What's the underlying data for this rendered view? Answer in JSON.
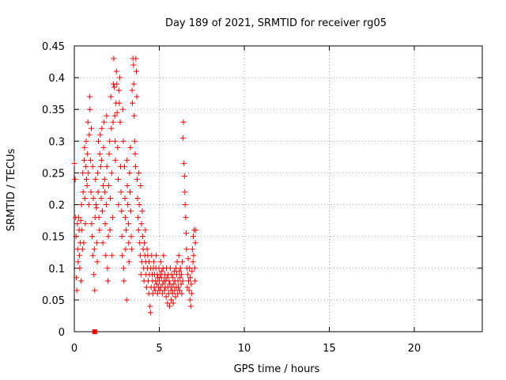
{
  "chart_data": {
    "type": "scatter",
    "title": "Day 189 of 2021, SRMTID for receiver rg05",
    "xlabel": "GPS time / hours",
    "ylabel": "SRMTID / TECUs",
    "xlim": [
      0,
      24
    ],
    "ylim": [
      0,
      0.45
    ],
    "x_ticks": [
      "0",
      "5",
      "10",
      "15",
      "20"
    ],
    "x_tick_values": [
      0,
      5,
      10,
      15,
      20
    ],
    "y_ticks": [
      "0",
      "0.05",
      "0.1",
      "0.15",
      "0.2",
      "0.25",
      "0.3",
      "0.35",
      "0.4",
      "0.45"
    ],
    "y_tick_values": [
      0,
      0.05,
      0.1,
      0.15,
      0.2,
      0.25,
      0.3,
      0.35,
      0.4,
      0.45
    ],
    "grid": true,
    "marker": "+",
    "color": "#ff0000",
    "series": [
      {
        "points": [
          [
            0.0,
            0.265
          ],
          [
            0.05,
            0.24
          ],
          [
            0.08,
            0.18
          ],
          [
            0.1,
            0.15
          ],
          [
            0.12,
            0.085
          ],
          [
            0.15,
            0.065
          ],
          [
            0.18,
            0.17
          ],
          [
            0.2,
            0.13
          ],
          [
            0.22,
            0.11
          ],
          [
            0.25,
            0.18
          ],
          [
            0.28,
            0.16
          ],
          [
            0.3,
            0.12
          ],
          [
            0.32,
            0.1
          ],
          [
            0.35,
            0.14
          ],
          [
            0.38,
            0.175
          ],
          [
            0.4,
            0.08
          ],
          [
            0.42,
            0.2
          ],
          [
            0.45,
            0.16
          ],
          [
            0.48,
            0.13
          ],
          [
            0.5,
            0.25
          ],
          [
            0.52,
            0.22
          ],
          [
            0.55,
            0.14
          ],
          [
            0.58,
            0.27
          ],
          [
            0.6,
            0.29
          ],
          [
            0.62,
            0.21
          ],
          [
            0.65,
            0.17
          ],
          [
            0.68,
            0.26
          ],
          [
            0.7,
            0.3
          ],
          [
            0.72,
            0.24
          ],
          [
            0.75,
            0.23
          ],
          [
            0.78,
            0.28
          ],
          [
            0.8,
            0.33
          ],
          [
            0.82,
            0.25
          ],
          [
            0.85,
            0.2
          ],
          [
            0.88,
            0.31
          ],
          [
            0.9,
            0.37
          ],
          [
            0.92,
            0.35
          ],
          [
            0.95,
            0.27
          ],
          [
            0.98,
            0.22
          ],
          [
            1.0,
            0.32
          ],
          [
            1.02,
            0.17
          ],
          [
            1.05,
            0.15
          ],
          [
            1.08,
            0.26
          ],
          [
            1.1,
            0.12
          ],
          [
            1.12,
            0.21
          ],
          [
            1.15,
            0.09
          ],
          [
            1.18,
            0.13
          ],
          [
            1.2,
            0.065
          ],
          [
            1.22,
            0.18
          ],
          [
            1.25,
            0.24
          ],
          [
            1.28,
            0.2
          ],
          [
            1.3,
            0.195
          ],
          [
            1.32,
            0.14
          ],
          [
            1.35,
            0.11
          ],
          [
            1.38,
            0.25
          ],
          [
            1.4,
            0.22
          ],
          [
            1.42,
            0.3
          ],
          [
            1.45,
            0.18
          ],
          [
            1.48,
            0.16
          ],
          [
            1.5,
            0.28
          ],
          [
            1.52,
            0.31
          ],
          [
            1.55,
            0.26
          ],
          [
            1.58,
            0.21
          ],
          [
            1.6,
            0.27
          ],
          [
            1.62,
            0.32
          ],
          [
            1.65,
            0.19
          ],
          [
            1.68,
            0.14
          ],
          [
            1.7,
            0.23
          ],
          [
            1.72,
            0.29
          ],
          [
            1.75,
            0.33
          ],
          [
            1.78,
            0.24
          ],
          [
            1.8,
            0.22
          ],
          [
            1.82,
            0.17
          ],
          [
            1.85,
            0.12
          ],
          [
            1.88,
            0.2
          ],
          [
            1.9,
            0.34
          ],
          [
            1.92,
            0.26
          ],
          [
            1.95,
            0.1
          ],
          [
            1.98,
            0.08
          ],
          [
            2.0,
            0.15
          ],
          [
            2.02,
            0.23
          ],
          [
            2.05,
            0.28
          ],
          [
            2.08,
            0.3
          ],
          [
            2.1,
            0.16
          ],
          [
            2.12,
            0.21
          ],
          [
            2.15,
            0.37
          ],
          [
            2.18,
            0.32
          ],
          [
            2.2,
            0.25
          ],
          [
            2.22,
            0.12
          ],
          [
            2.25,
            0.18
          ],
          [
            2.28,
            0.33
          ],
          [
            2.3,
            0.39
          ],
          [
            2.32,
            0.43
          ],
          [
            2.35,
            0.385
          ],
          [
            2.38,
            0.34
          ],
          [
            2.4,
            0.3
          ],
          [
            2.42,
            0.27
          ],
          [
            2.45,
            0.36
          ],
          [
            2.48,
            0.41
          ],
          [
            2.5,
            0.39
          ],
          [
            2.52,
            0.345
          ],
          [
            2.55,
            0.29
          ],
          [
            2.58,
            0.24
          ],
          [
            2.6,
            0.2
          ],
          [
            2.62,
            0.38
          ],
          [
            2.65,
            0.36
          ],
          [
            2.68,
            0.4
          ],
          [
            2.7,
            0.33
          ],
          [
            2.72,
            0.26
          ],
          [
            2.75,
            0.22
          ],
          [
            2.78,
            0.19
          ],
          [
            2.8,
            0.15
          ],
          [
            2.82,
            0.12
          ],
          [
            2.85,
            0.35
          ],
          [
            2.88,
            0.3
          ],
          [
            2.9,
            0.1
          ],
          [
            2.92,
            0.08
          ],
          [
            2.95,
            0.26
          ],
          [
            2.98,
            0.21
          ],
          [
            3.0,
            0.18
          ],
          [
            3.02,
            0.13
          ],
          [
            3.05,
            0.16
          ],
          [
            3.08,
            0.05
          ],
          [
            3.1,
            0.27
          ],
          [
            3.12,
            0.23
          ],
          [
            3.15,
            0.2
          ],
          [
            3.18,
            0.17
          ],
          [
            3.2,
            0.14
          ],
          [
            3.22,
            0.11
          ],
          [
            3.25,
            0.25
          ],
          [
            3.28,
            0.22
          ],
          [
            3.3,
            0.29
          ],
          [
            3.32,
            0.19
          ],
          [
            3.35,
            0.15
          ],
          [
            3.38,
            0.13
          ],
          [
            3.4,
            0.38
          ],
          [
            3.42,
            0.36
          ],
          [
            3.45,
            0.43
          ],
          [
            3.48,
            0.42
          ],
          [
            3.5,
            0.39
          ],
          [
            3.52,
            0.34
          ],
          [
            3.55,
            0.3
          ],
          [
            3.58,
            0.28
          ],
          [
            3.6,
            0.26
          ],
          [
            3.62,
            0.43
          ],
          [
            3.65,
            0.41
          ],
          [
            3.68,
            0.37
          ],
          [
            3.7,
            0.24
          ],
          [
            3.72,
            0.21
          ],
          [
            3.75,
            0.18
          ],
          [
            3.78,
            0.16
          ],
          [
            3.8,
            0.25
          ],
          [
            3.82,
            0.2
          ],
          [
            3.85,
            0.14
          ],
          [
            3.88,
            0.12
          ],
          [
            3.9,
            0.23
          ],
          [
            3.92,
            0.09
          ],
          [
            3.95,
            0.17
          ],
          [
            3.98,
            0.11
          ],
          [
            4.0,
            0.19
          ],
          [
            4.02,
            0.15
          ],
          [
            4.05,
            0.13
          ],
          [
            4.08,
            0.1
          ],
          [
            4.1,
            0.08
          ],
          [
            4.12,
            0.14
          ],
          [
            4.15,
            0.12
          ],
          [
            4.18,
            0.16
          ],
          [
            4.2,
            0.11
          ],
          [
            4.22,
            0.09
          ],
          [
            4.25,
            0.07
          ],
          [
            4.28,
            0.13
          ],
          [
            4.3,
            0.1
          ],
          [
            4.32,
            0.12
          ],
          [
            4.35,
            0.08
          ],
          [
            4.38,
            0.06
          ],
          [
            4.4,
            0.11
          ],
          [
            4.42,
            0.09
          ],
          [
            4.45,
            0.04
          ],
          [
            4.48,
            0.03
          ],
          [
            4.5,
            0.1
          ],
          [
            4.52,
            0.07
          ],
          [
            4.55,
            0.12
          ],
          [
            4.58,
            0.09
          ],
          [
            4.6,
            0.08
          ],
          [
            4.62,
            0.06
          ],
          [
            4.65,
            0.1
          ],
          [
            4.68,
            0.11
          ],
          [
            4.7,
            0.07
          ],
          [
            4.72,
            0.09
          ],
          [
            4.75,
            0.065
          ],
          [
            4.78,
            0.08
          ],
          [
            4.8,
            0.1
          ],
          [
            4.82,
            0.12
          ],
          [
            4.85,
            0.075
          ],
          [
            4.88,
            0.09
          ],
          [
            4.9,
            0.06
          ],
          [
            4.92,
            0.085
          ],
          [
            4.95,
            0.07
          ],
          [
            4.98,
            0.1
          ],
          [
            5.0,
            0.08
          ],
          [
            5.02,
            0.065
          ],
          [
            5.05,
            0.09
          ],
          [
            5.08,
            0.11
          ],
          [
            5.1,
            0.07
          ],
          [
            5.12,
            0.085
          ],
          [
            5.15,
            0.095
          ],
          [
            5.18,
            0.06
          ],
          [
            5.2,
            0.075
          ],
          [
            5.22,
            0.1
          ],
          [
            5.25,
            0.12
          ],
          [
            5.28,
            0.08
          ],
          [
            5.3,
            0.065
          ],
          [
            5.32,
            0.09
          ],
          [
            5.35,
            0.07
          ],
          [
            5.38,
            0.08
          ],
          [
            5.4,
            0.055
          ],
          [
            5.42,
            0.1
          ],
          [
            5.45,
            0.085
          ],
          [
            5.48,
            0.045
          ],
          [
            5.5,
            0.07
          ],
          [
            5.52,
            0.09
          ],
          [
            5.55,
            0.06
          ],
          [
            5.58,
            0.08
          ],
          [
            5.6,
            0.04
          ],
          [
            5.62,
            0.075
          ],
          [
            5.65,
            0.1
          ],
          [
            5.68,
            0.065
          ],
          [
            5.7,
            0.05
          ],
          [
            5.72,
            0.09
          ],
          [
            5.75,
            0.07
          ],
          [
            5.78,
            0.06
          ],
          [
            5.8,
            0.085
          ],
          [
            5.82,
            0.045
          ],
          [
            5.85,
            0.075
          ],
          [
            5.88,
            0.095
          ],
          [
            5.9,
            0.065
          ],
          [
            5.92,
            0.08
          ],
          [
            5.95,
            0.055
          ],
          [
            5.98,
            0.1
          ],
          [
            6.0,
            0.07
          ],
          [
            6.02,
            0.09
          ],
          [
            6.05,
            0.11
          ],
          [
            6.08,
            0.06
          ],
          [
            6.1,
            0.08
          ],
          [
            6.12,
            0.07
          ],
          [
            6.15,
            0.12
          ],
          [
            6.18,
            0.095
          ],
          [
            6.2,
            0.065
          ],
          [
            6.22,
            0.085
          ],
          [
            6.25,
            0.1
          ],
          [
            6.28,
            0.075
          ],
          [
            6.3,
            0.09
          ],
          [
            6.32,
            0.06
          ],
          [
            6.35,
            0.11
          ],
          [
            6.38,
            0.08
          ],
          [
            6.4,
            0.305
          ],
          [
            6.42,
            0.33
          ],
          [
            6.45,
            0.265
          ],
          [
            6.48,
            0.245
          ],
          [
            6.5,
            0.22
          ],
          [
            6.52,
            0.2
          ],
          [
            6.55,
            0.18
          ],
          [
            6.58,
            0.155
          ],
          [
            6.6,
            0.13
          ],
          [
            6.62,
            0.1
          ],
          [
            6.65,
            0.07
          ],
          [
            6.68,
            0.09
          ],
          [
            6.7,
            0.115
          ],
          [
            6.72,
            0.08
          ],
          [
            6.75,
            0.065
          ],
          [
            6.78,
            0.1
          ],
          [
            6.8,
            0.05
          ],
          [
            6.82,
            0.085
          ],
          [
            6.85,
            0.04
          ],
          [
            6.88,
            0.075
          ],
          [
            6.9,
            0.06
          ],
          [
            6.92,
            0.095
          ],
          [
            6.95,
            0.13
          ],
          [
            6.98,
            0.11
          ],
          [
            7.0,
            0.15
          ],
          [
            7.02,
            0.12
          ],
          [
            7.05,
            0.16
          ],
          [
            7.08,
            0.1
          ],
          [
            7.1,
            0.08
          ],
          [
            7.12,
            0.14
          ],
          [
            7.15,
            0.16
          ]
        ]
      },
      {
        "points": [
          [
            1.2,
            0.0
          ]
        ],
        "marker": "square"
      }
    ]
  }
}
